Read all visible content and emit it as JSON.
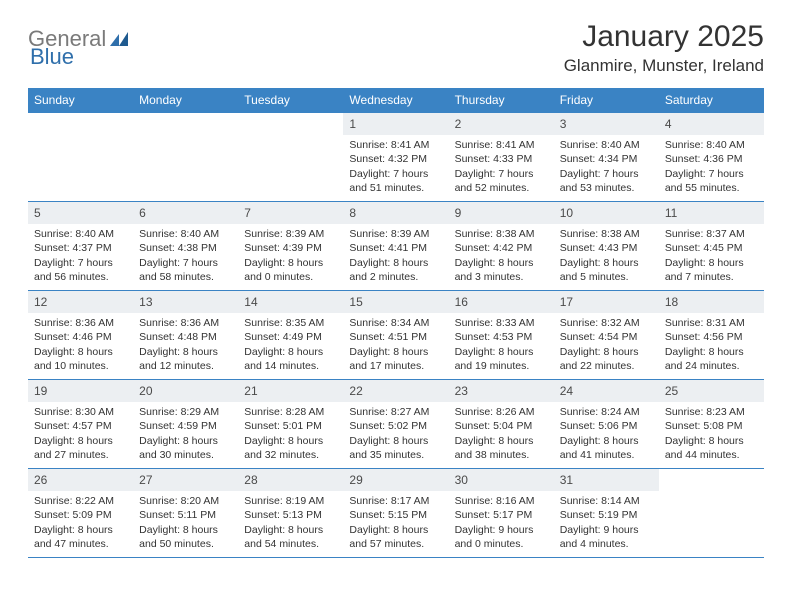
{
  "logo": {
    "general": "General",
    "blue": "Blue"
  },
  "title": "January 2025",
  "location": "Glanmire, Munster, Ireland",
  "colors": {
    "headerBg": "#3a83c4",
    "headerText": "#ffffff",
    "dayNumBg": "#eceff2",
    "border": "#3a83c4",
    "body": "#333333",
    "logoGray": "#7a7a7a",
    "logoBlue": "#2f6fab"
  },
  "dayNames": [
    "Sunday",
    "Monday",
    "Tuesday",
    "Wednesday",
    "Thursday",
    "Friday",
    "Saturday"
  ],
  "weeks": [
    [
      {
        "n": "",
        "lines": []
      },
      {
        "n": "",
        "lines": []
      },
      {
        "n": "",
        "lines": []
      },
      {
        "n": "1",
        "lines": [
          "Sunrise: 8:41 AM",
          "Sunset: 4:32 PM",
          "Daylight: 7 hours and 51 minutes."
        ]
      },
      {
        "n": "2",
        "lines": [
          "Sunrise: 8:41 AM",
          "Sunset: 4:33 PM",
          "Daylight: 7 hours and 52 minutes."
        ]
      },
      {
        "n": "3",
        "lines": [
          "Sunrise: 8:40 AM",
          "Sunset: 4:34 PM",
          "Daylight: 7 hours and 53 minutes."
        ]
      },
      {
        "n": "4",
        "lines": [
          "Sunrise: 8:40 AM",
          "Sunset: 4:36 PM",
          "Daylight: 7 hours and 55 minutes."
        ]
      }
    ],
    [
      {
        "n": "5",
        "lines": [
          "Sunrise: 8:40 AM",
          "Sunset: 4:37 PM",
          "Daylight: 7 hours and 56 minutes."
        ]
      },
      {
        "n": "6",
        "lines": [
          "Sunrise: 8:40 AM",
          "Sunset: 4:38 PM",
          "Daylight: 7 hours and 58 minutes."
        ]
      },
      {
        "n": "7",
        "lines": [
          "Sunrise: 8:39 AM",
          "Sunset: 4:39 PM",
          "Daylight: 8 hours and 0 minutes."
        ]
      },
      {
        "n": "8",
        "lines": [
          "Sunrise: 8:39 AM",
          "Sunset: 4:41 PM",
          "Daylight: 8 hours and 2 minutes."
        ]
      },
      {
        "n": "9",
        "lines": [
          "Sunrise: 8:38 AM",
          "Sunset: 4:42 PM",
          "Daylight: 8 hours and 3 minutes."
        ]
      },
      {
        "n": "10",
        "lines": [
          "Sunrise: 8:38 AM",
          "Sunset: 4:43 PM",
          "Daylight: 8 hours and 5 minutes."
        ]
      },
      {
        "n": "11",
        "lines": [
          "Sunrise: 8:37 AM",
          "Sunset: 4:45 PM",
          "Daylight: 8 hours and 7 minutes."
        ]
      }
    ],
    [
      {
        "n": "12",
        "lines": [
          "Sunrise: 8:36 AM",
          "Sunset: 4:46 PM",
          "Daylight: 8 hours and 10 minutes."
        ]
      },
      {
        "n": "13",
        "lines": [
          "Sunrise: 8:36 AM",
          "Sunset: 4:48 PM",
          "Daylight: 8 hours and 12 minutes."
        ]
      },
      {
        "n": "14",
        "lines": [
          "Sunrise: 8:35 AM",
          "Sunset: 4:49 PM",
          "Daylight: 8 hours and 14 minutes."
        ]
      },
      {
        "n": "15",
        "lines": [
          "Sunrise: 8:34 AM",
          "Sunset: 4:51 PM",
          "Daylight: 8 hours and 17 minutes."
        ]
      },
      {
        "n": "16",
        "lines": [
          "Sunrise: 8:33 AM",
          "Sunset: 4:53 PM",
          "Daylight: 8 hours and 19 minutes."
        ]
      },
      {
        "n": "17",
        "lines": [
          "Sunrise: 8:32 AM",
          "Sunset: 4:54 PM",
          "Daylight: 8 hours and 22 minutes."
        ]
      },
      {
        "n": "18",
        "lines": [
          "Sunrise: 8:31 AM",
          "Sunset: 4:56 PM",
          "Daylight: 8 hours and 24 minutes."
        ]
      }
    ],
    [
      {
        "n": "19",
        "lines": [
          "Sunrise: 8:30 AM",
          "Sunset: 4:57 PM",
          "Daylight: 8 hours and 27 minutes."
        ]
      },
      {
        "n": "20",
        "lines": [
          "Sunrise: 8:29 AM",
          "Sunset: 4:59 PM",
          "Daylight: 8 hours and 30 minutes."
        ]
      },
      {
        "n": "21",
        "lines": [
          "Sunrise: 8:28 AM",
          "Sunset: 5:01 PM",
          "Daylight: 8 hours and 32 minutes."
        ]
      },
      {
        "n": "22",
        "lines": [
          "Sunrise: 8:27 AM",
          "Sunset: 5:02 PM",
          "Daylight: 8 hours and 35 minutes."
        ]
      },
      {
        "n": "23",
        "lines": [
          "Sunrise: 8:26 AM",
          "Sunset: 5:04 PM",
          "Daylight: 8 hours and 38 minutes."
        ]
      },
      {
        "n": "24",
        "lines": [
          "Sunrise: 8:24 AM",
          "Sunset: 5:06 PM",
          "Daylight: 8 hours and 41 minutes."
        ]
      },
      {
        "n": "25",
        "lines": [
          "Sunrise: 8:23 AM",
          "Sunset: 5:08 PM",
          "Daylight: 8 hours and 44 minutes."
        ]
      }
    ],
    [
      {
        "n": "26",
        "lines": [
          "Sunrise: 8:22 AM",
          "Sunset: 5:09 PM",
          "Daylight: 8 hours and 47 minutes."
        ]
      },
      {
        "n": "27",
        "lines": [
          "Sunrise: 8:20 AM",
          "Sunset: 5:11 PM",
          "Daylight: 8 hours and 50 minutes."
        ]
      },
      {
        "n": "28",
        "lines": [
          "Sunrise: 8:19 AM",
          "Sunset: 5:13 PM",
          "Daylight: 8 hours and 54 minutes."
        ]
      },
      {
        "n": "29",
        "lines": [
          "Sunrise: 8:17 AM",
          "Sunset: 5:15 PM",
          "Daylight: 8 hours and 57 minutes."
        ]
      },
      {
        "n": "30",
        "lines": [
          "Sunrise: 8:16 AM",
          "Sunset: 5:17 PM",
          "Daylight: 9 hours and 0 minutes."
        ]
      },
      {
        "n": "31",
        "lines": [
          "Sunrise: 8:14 AM",
          "Sunset: 5:19 PM",
          "Daylight: 9 hours and 4 minutes."
        ]
      },
      {
        "n": "",
        "lines": []
      }
    ]
  ]
}
